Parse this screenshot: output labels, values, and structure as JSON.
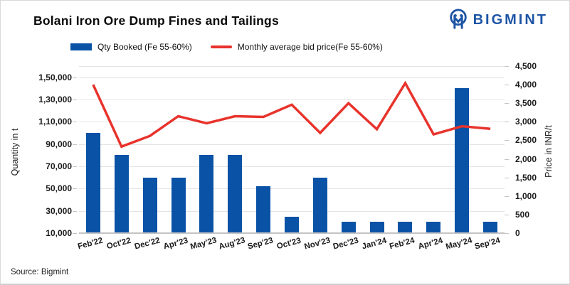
{
  "header": {
    "title": "Bolani Iron Ore Dump Fines and Tailings",
    "brand": "BIGMINT"
  },
  "legend": [
    {
      "label": "Qty Booked (Fe 55-60%)",
      "color": "#0a52a6",
      "type": "bar"
    },
    {
      "label": "Monthly average bid price(Fe 55-60%)",
      "color": "#e8332c",
      "type": "line"
    }
  ],
  "source": "Source: Bigmint",
  "colors": {
    "bar": "#0a52a6",
    "line": "#e8332c",
    "brand": "#1e55a6",
    "grid": "#e4e4e4"
  },
  "chart_data": {
    "type": "bar",
    "subtype": "combo-bar-line-dual-axis",
    "title": "Bolani Iron Ore Dump Fines and Tailings",
    "categories": [
      "Feb'22",
      "Oct'22",
      "Dec'22",
      "Apr'23",
      "May'23",
      "Aug'23",
      "Sep'23",
      "Oct'23",
      "Nov'23",
      "Dec'23",
      "Jan'24",
      "Feb'24",
      "Apr'24",
      "May'24",
      "Sep'24"
    ],
    "series": [
      {
        "name": "Qty Booked (Fe 55-60%)",
        "type": "bar",
        "axis": "left",
        "color": "#0a52a6",
        "values": [
          100000,
          80000,
          60000,
          60000,
          80000,
          80000,
          52000,
          25000,
          60000,
          20000,
          20000,
          20000,
          20000,
          140000,
          20000
        ]
      },
      {
        "name": "Monthly average bid price(Fe 55-60%)",
        "type": "line",
        "axis": "right",
        "color": "#e8332c",
        "values": [
          4000,
          2330,
          2620,
          3150,
          2960,
          3150,
          3130,
          3460,
          2700,
          3500,
          2800,
          4040,
          2660,
          2880,
          2810
        ]
      }
    ],
    "left_axis": {
      "label": "Quantity in t",
      "min": 10000,
      "max": 160000,
      "tick_values": [
        150000,
        130000,
        110000,
        90000,
        70000,
        50000,
        30000,
        10000
      ],
      "tick_labels": [
        "1,50,000",
        "1,30,000",
        "1,10,000",
        "90,000",
        "70,000",
        "50,000",
        "30,000",
        "10,000"
      ]
    },
    "right_axis": {
      "label": "Price in INR/t",
      "min": 0,
      "max": 4500,
      "tick_values": [
        4500,
        4000,
        3500,
        3000,
        2500,
        2000,
        1500,
        1000,
        500,
        0
      ],
      "tick_labels": [
        "4,500",
        "4,000",
        "3,500",
        "3,000",
        "2,500",
        "2,000",
        "1,500",
        "1,000",
        "500",
        "0"
      ]
    },
    "grid": true,
    "legend_position": "top"
  }
}
